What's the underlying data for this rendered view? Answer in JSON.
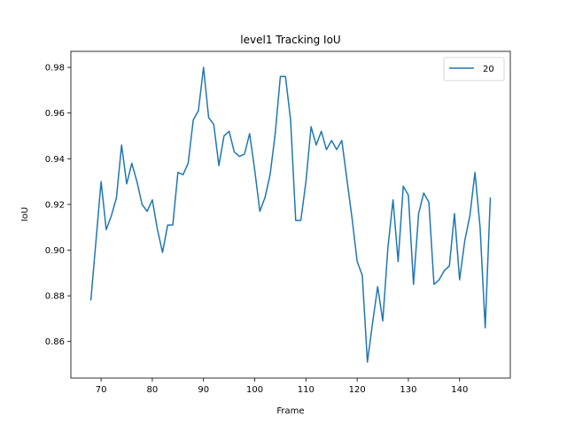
{
  "chart_data": {
    "type": "line",
    "title": "level1 Tracking IoU",
    "xlabel": "Frame",
    "ylabel": "IoU",
    "xlim": [
      64.1,
      149.9
    ],
    "ylim": [
      0.844,
      0.987
    ],
    "xticks": [
      70,
      80,
      90,
      100,
      110,
      120,
      130,
      140
    ],
    "yticks": [
      0.86,
      0.88,
      0.9,
      0.92,
      0.94,
      0.96,
      0.98
    ],
    "ytick_labels": [
      "0.86",
      "0.88",
      "0.90",
      "0.92",
      "0.94",
      "0.96",
      "0.98"
    ],
    "grid": false,
    "legend": "top-right",
    "series": [
      {
        "name": "20",
        "color": "#1f77b4",
        "x": [
          68,
          69,
          70,
          71,
          72,
          73,
          74,
          75,
          76,
          77,
          78,
          79,
          80,
          81,
          82,
          83,
          84,
          85,
          86,
          87,
          88,
          89,
          90,
          91,
          92,
          93,
          94,
          95,
          96,
          97,
          98,
          99,
          100,
          101,
          102,
          103,
          104,
          105,
          106,
          107,
          108,
          109,
          110,
          111,
          112,
          113,
          114,
          115,
          116,
          117,
          118,
          119,
          120,
          121,
          122,
          123,
          124,
          125,
          126,
          127,
          128,
          129,
          130,
          131,
          132,
          133,
          134,
          135,
          136,
          137,
          138,
          139,
          140,
          141,
          142,
          143,
          144,
          145,
          146
        ],
        "y": [
          0.878,
          0.904,
          0.93,
          0.909,
          0.915,
          0.923,
          0.946,
          0.929,
          0.938,
          0.93,
          0.92,
          0.917,
          0.922,
          0.909,
          0.899,
          0.911,
          0.911,
          0.934,
          0.933,
          0.938,
          0.957,
          0.961,
          0.98,
          0.958,
          0.955,
          0.937,
          0.95,
          0.952,
          0.943,
          0.941,
          0.942,
          0.951,
          0.935,
          0.917,
          0.923,
          0.933,
          0.951,
          0.976,
          0.976,
          0.957,
          0.913,
          0.913,
          0.93,
          0.954,
          0.946,
          0.952,
          0.944,
          0.948,
          0.944,
          0.948,
          0.931,
          0.914,
          0.895,
          0.889,
          0.851,
          0.868,
          0.884,
          0.869,
          0.901,
          0.922,
          0.895,
          0.928,
          0.924,
          0.885,
          0.916,
          0.925,
          0.921,
          0.885,
          0.887,
          0.891,
          0.893,
          0.916,
          0.887,
          0.904,
          0.915,
          0.934,
          0.91,
          0.866,
          0.923
        ]
      }
    ]
  }
}
